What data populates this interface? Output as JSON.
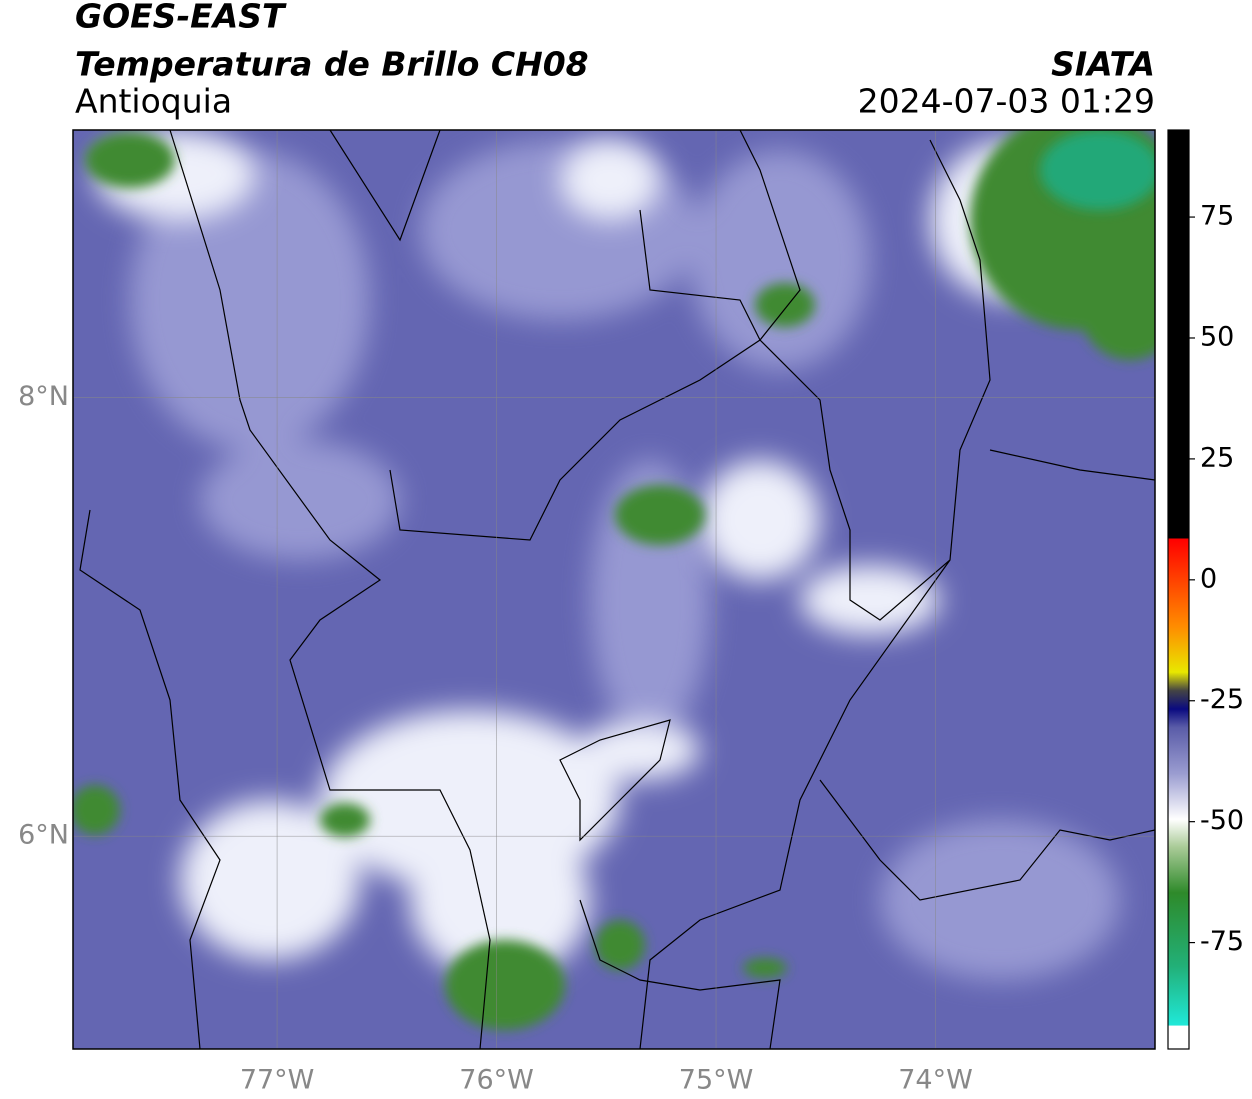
{
  "header": {
    "satellite": "GOES-EAST",
    "title": "Temperatura de Brillo CH08",
    "source": "SIATA",
    "region": "Antioquia",
    "datetime": "2024-07-03 01:29"
  },
  "map": {
    "xlim": [
      -77.93,
      -73.0
    ],
    "ylim": [
      5.03,
      9.22
    ],
    "xticks": [
      {
        "value": -77,
        "label": "77°W"
      },
      {
        "value": -76,
        "label": "76°W"
      },
      {
        "value": -75,
        "label": "75°W"
      },
      {
        "value": -74,
        "label": "74°W"
      }
    ],
    "yticks": [
      {
        "value": 8,
        "label": "8°N"
      },
      {
        "value": 6,
        "label": "6°N"
      }
    ],
    "grid": true
  },
  "colorbar": {
    "lim": [
      -97,
      93
    ],
    "ticks": [
      75,
      50,
      25,
      0,
      -25,
      -50,
      -75
    ]
  }
}
